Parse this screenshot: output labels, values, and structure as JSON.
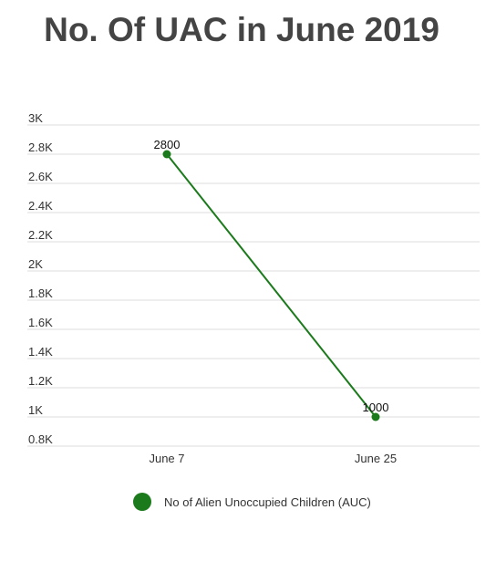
{
  "chart_data": {
    "type": "line",
    "title": "No. Of UAC in June 2019",
    "categories": [
      "June 7",
      "June 25"
    ],
    "series": [
      {
        "name": "No of Alien Unoccupied Children (AUC)",
        "values": [
          2800,
          1000
        ],
        "color": "#1b7a1b"
      }
    ],
    "data_labels": [
      "2800",
      "1000"
    ],
    "y_ticks": [
      {
        "value": 800,
        "label": "0.8K"
      },
      {
        "value": 1000,
        "label": "1K"
      },
      {
        "value": 1200,
        "label": "1.2K"
      },
      {
        "value": 1400,
        "label": "1.4K"
      },
      {
        "value": 1600,
        "label": "1.6K"
      },
      {
        "value": 1800,
        "label": "1.8K"
      },
      {
        "value": 2000,
        "label": "2K"
      },
      {
        "value": 2200,
        "label": "2.2K"
      },
      {
        "value": 2400,
        "label": "2.4K"
      },
      {
        "value": 2600,
        "label": "2.6K"
      },
      {
        "value": 2800,
        "label": "2.8K"
      },
      {
        "value": 3000,
        "label": "3K"
      }
    ],
    "ylim": [
      800,
      3000
    ],
    "grid": true,
    "legend_position": "bottom"
  }
}
